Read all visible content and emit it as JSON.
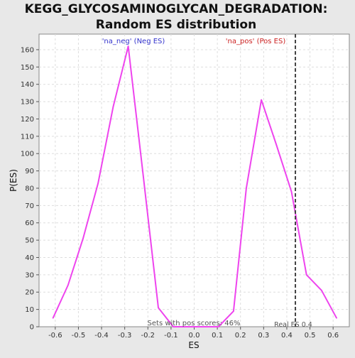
{
  "chart_data": {
    "type": "line",
    "title_line1": "KEGG_GLYCOSAMINOGLYCAN_DEGRADATION:",
    "title_line2": "Random ES distribution",
    "xlabel": "ES",
    "ylabel": "P(ES)",
    "xlim": [
      -0.67,
      0.67
    ],
    "ylim": [
      0,
      169
    ],
    "x_ticks": [
      -0.6,
      -0.5,
      -0.4,
      -0.3,
      -0.2,
      -0.1,
      0.0,
      0.1,
      0.2,
      0.3,
      0.4,
      0.5,
      0.6
    ],
    "x_tick_labels": [
      "-0.6",
      "-0.5",
      "-0.4",
      "-0.3",
      "-0.2",
      "-0.1",
      "0.0",
      "0.1",
      "0.2",
      "0.3",
      "0.4",
      "0.5",
      "0.6"
    ],
    "y_ticks": [
      0,
      10,
      20,
      30,
      40,
      50,
      60,
      70,
      80,
      90,
      100,
      110,
      120,
      130,
      140,
      150,
      160
    ],
    "grid": true,
    "series": [
      {
        "color": "#ee44ee",
        "x": [
          -0.61,
          -0.545,
          -0.48,
          -0.415,
          -0.35,
          -0.285,
          -0.22,
          -0.155,
          -0.09,
          -0.025,
          0.04,
          0.105,
          0.17,
          0.225,
          0.29,
          0.355,
          0.42,
          0.485,
          0.55,
          0.615
        ],
        "y": [
          5,
          24,
          51,
          83,
          127,
          162,
          87,
          11,
          0,
          0,
          0,
          0,
          9,
          80,
          131,
          105,
          78,
          30,
          21,
          5
        ]
      }
    ],
    "real_es": 0.437,
    "annotations": {
      "neg_label": "'na_neg' (Neg ES)",
      "pos_label": "'na_pos' (Pos ES)",
      "sets_label": "Sets with pos scores: 46%",
      "real_es_label": "Real ES 0.4"
    },
    "colors": {
      "neg_label": "#3333cc",
      "pos_label": "#cc2222",
      "line": "#ee44ee",
      "real_es_line": "#444444"
    }
  }
}
